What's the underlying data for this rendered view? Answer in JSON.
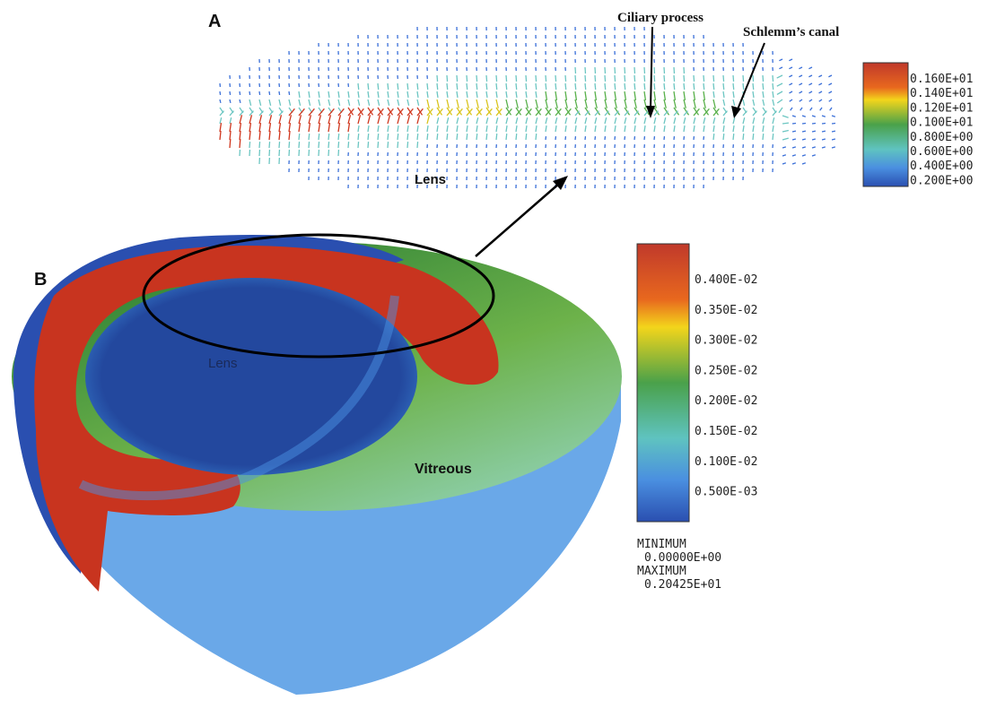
{
  "panel_a": {
    "label": "A",
    "annotations": {
      "ciliary": "Ciliary process",
      "schlemm": "Schlemm’s canal",
      "lens": "Lens"
    },
    "colorbar": [
      "0.160E+01",
      "0.140E+01",
      "0.120E+01",
      "0.100E+01",
      "0.800E+00",
      "0.600E+00",
      "0.400E+00",
      "0.200E+00"
    ]
  },
  "panel_b": {
    "label": "B",
    "annotations": {
      "lens": "Lens",
      "vitreous": "Vitreous"
    },
    "colorbar": [
      "0.400E-02",
      "0.350E-02",
      "0.300E-02",
      "0.250E-02",
      "0.200E-02",
      "0.150E-02",
      "0.100E-02",
      "0.500E-03"
    ],
    "range": {
      "min_label": "MINIMUM",
      "min": "0.00000E+00",
      "max_label": "MAXIMUM",
      "max": "0.20425E+01"
    }
  }
}
